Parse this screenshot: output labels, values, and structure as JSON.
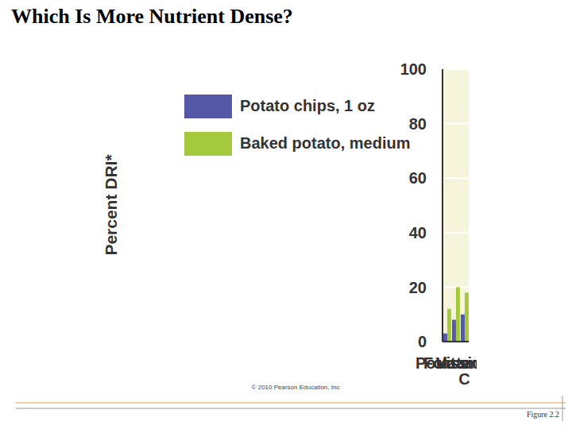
{
  "chart_data": {
    "type": "bar",
    "title": "Which Is More Nutrient Dense?",
    "y_label": "Percent DRI*",
    "categories": [
      "Folate",
      "Potassium",
      "Vitamin C"
    ],
    "series": [
      {
        "name": "Potato chips, 1 oz",
        "color": "#5558a6",
        "values": [
          3,
          8,
          10
        ]
      },
      {
        "name": "Baked potato, medium",
        "color": "#a5c93d",
        "values": [
          12,
          20,
          18
        ]
      }
    ],
    "ylim": [
      0,
      100
    ],
    "yticks": [
      0,
      20,
      40,
      60,
      80,
      100
    ],
    "grid": true,
    "legend": "upper left",
    "annotations": [
      "© 2010 Pearson Education, Inc",
      "Figure 2.2"
    ]
  }
}
